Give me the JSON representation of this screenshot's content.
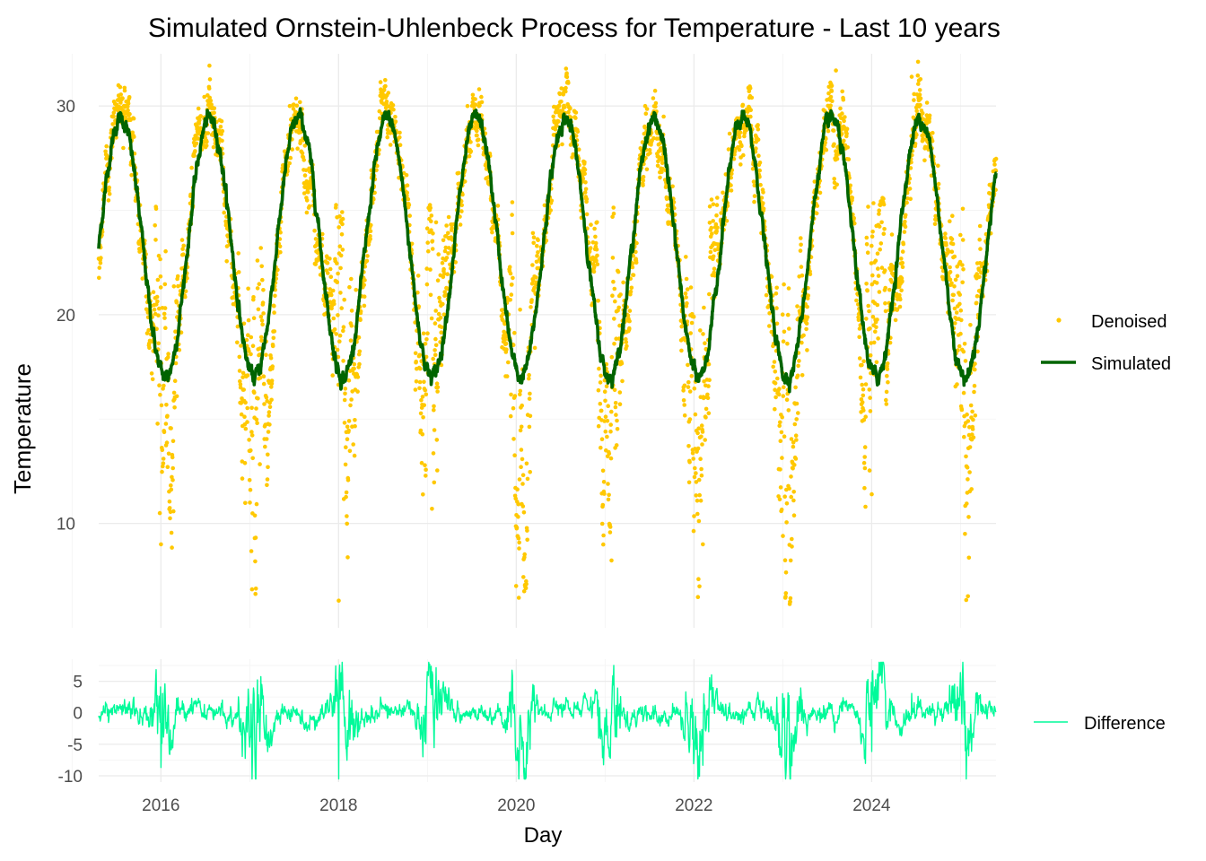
{
  "chart_data": [
    {
      "type": "line",
      "title": "Simulated Ornstein-Uhlenbeck Process for Temperature - Last 10 years",
      "xlabel": "",
      "ylabel": "Temperature",
      "x_range": [
        2015.3,
        2025.4
      ],
      "ylim": [
        5,
        32.5
      ],
      "y_ticks": [
        10,
        20,
        30
      ],
      "grid": true,
      "legend_position": "right",
      "series": [
        {
          "name": "Denoised",
          "kind": "points",
          "color": "#FFC800"
        },
        {
          "name": "Simulated",
          "kind": "line",
          "color": "#006400"
        }
      ],
      "simulated_model": {
        "mean": 23.2,
        "amplitude": 6.2,
        "peak_phase_year_fraction": 0.55,
        "start_year": 2015.3,
        "end_year": 2025.4
      },
      "denoised_minima": [
        {
          "x": 2016.0,
          "y": 9.0
        },
        {
          "x": 2017.0,
          "y": 11.0
        },
        {
          "x": 2018.0,
          "y": 6.3
        },
        {
          "x": 2019.05,
          "y": 10.7
        },
        {
          "x": 2020.0,
          "y": 10.4
        },
        {
          "x": 2021.05,
          "y": 9.9
        },
        {
          "x": 2022.1,
          "y": 9.0
        },
        {
          "x": 2023.0,
          "y": 9.4
        },
        {
          "x": 2024.0,
          "y": 11.4
        },
        {
          "x": 2025.05,
          "y": 9.5
        }
      ],
      "denoised_maxima": [
        {
          "x": 2015.45,
          "y": 29.5
        },
        {
          "x": 2016.55,
          "y": 30.4
        },
        {
          "x": 2017.45,
          "y": 30.0
        },
        {
          "x": 2018.55,
          "y": 28.5
        },
        {
          "x": 2019.45,
          "y": 30.0
        },
        {
          "x": 2020.6,
          "y": 29.5
        },
        {
          "x": 2021.45,
          "y": 30.0
        },
        {
          "x": 2022.65,
          "y": 30.4
        },
        {
          "x": 2023.6,
          "y": 31.7
        },
        {
          "x": 2024.45,
          "y": 31.4
        }
      ]
    },
    {
      "type": "line",
      "title": "",
      "xlabel": "Day",
      "ylabel": "",
      "x_range": [
        2015.3,
        2025.4
      ],
      "ylim": [
        -11,
        8.5
      ],
      "y_ticks": [
        5,
        0,
        -5,
        -10
      ],
      "x_ticks": [
        "2016",
        "2018",
        "2020",
        "2022",
        "2024"
      ],
      "x_tick_values": [
        2016,
        2018,
        2020,
        2022,
        2024
      ],
      "grid": true,
      "legend_position": "right",
      "series": [
        {
          "name": "Difference",
          "kind": "line",
          "color": "#00FA9A",
          "min": -10.5,
          "max": 8.0
        }
      ]
    }
  ]
}
